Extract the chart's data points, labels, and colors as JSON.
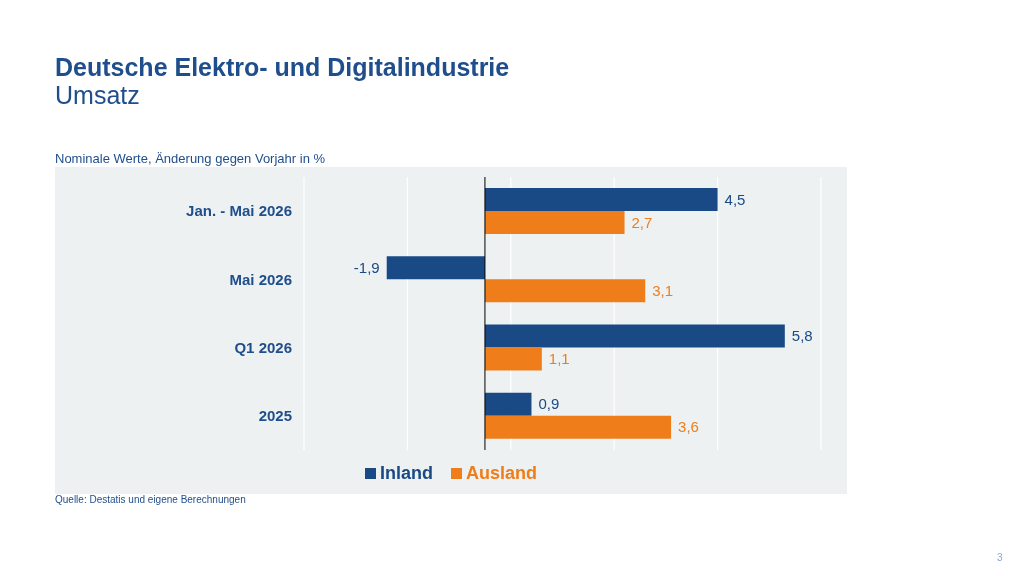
{
  "chart_data": {
    "type": "bar",
    "orientation": "horizontal",
    "title": "Deutsche Elektro- und Digitalindustrie",
    "subtitle": "Umsatz",
    "annotations": [
      "Nominale Werte, Änderung gegen Vorjahr in %",
      "Quelle: Destatis und eigene Berechnungen",
      "3"
    ],
    "categories": [
      "Jan. - Mai 2026",
      "Mai 2026",
      "Q1 2026",
      "2025"
    ],
    "series": [
      {
        "name": "Inland",
        "color": "#1a4a86",
        "values": [
          4.5,
          -1.9,
          5.8,
          0.9
        ],
        "value_labels": [
          "4,5",
          "-1,9",
          "5,8",
          "0,9"
        ]
      },
      {
        "name": "Ausland",
        "color": "#ee7d1a",
        "values": [
          2.7,
          3.1,
          1.1,
          3.6
        ],
        "value_labels": [
          "2,7",
          "3,1",
          "1,1",
          "3,6"
        ]
      }
    ],
    "xlim": [
      -3.5,
      6.5
    ],
    "xticks": [
      {
        "value": -3.5,
        "label": null
      },
      {
        "value": -1.5,
        "label": null
      },
      {
        "value": 0.5,
        "label": null
      },
      {
        "value": 2.5,
        "label": null
      },
      {
        "value": 4.5,
        "label": null
      },
      {
        "value": 6.5,
        "label": null
      }
    ],
    "tick_labels": "y",
    "grid": "x",
    "legend": "bottom",
    "ref_lines": [
      {
        "axis": "x",
        "value": 0,
        "color": "#000000"
      }
    ]
  }
}
